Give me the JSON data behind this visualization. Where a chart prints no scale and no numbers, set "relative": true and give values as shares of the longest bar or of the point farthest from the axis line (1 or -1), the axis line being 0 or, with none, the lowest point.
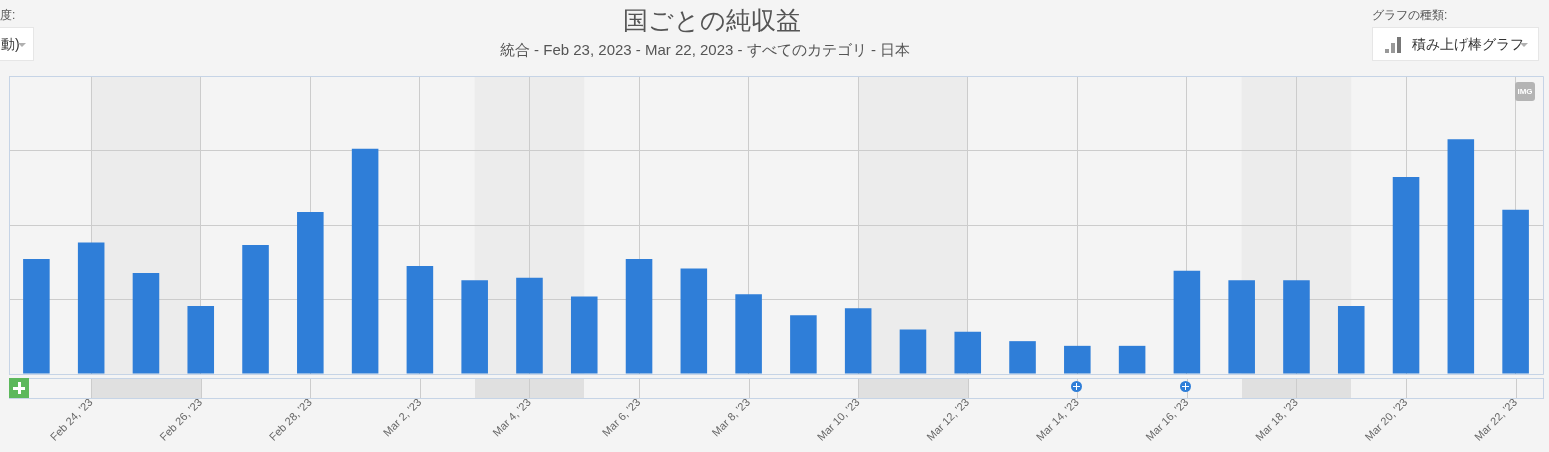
{
  "chart_data": {
    "type": "bar",
    "title": "国ごとの純収益",
    "subtitle": "統合 - Feb 23, 2023 - Mar 22, 2023 - すべてのカテゴリ - 日本",
    "x": [
      "2023-02-23",
      "2023-02-24",
      "2023-02-25",
      "2023-02-26",
      "2023-02-27",
      "2023-02-28",
      "2023-03-01",
      "2023-03-02",
      "2023-03-03",
      "2023-03-04",
      "2023-03-05",
      "2023-03-06",
      "2023-03-07",
      "2023-03-08",
      "2023-03-09",
      "2023-03-10",
      "2023-03-11",
      "2023-03-12",
      "2023-03-13",
      "2023-03-14",
      "2023-03-15",
      "2023-03-16",
      "2023-03-17",
      "2023-03-18",
      "2023-03-19",
      "2023-03-20",
      "2023-03-21",
      "2023-03-22"
    ],
    "values": [
      0.49,
      0.56,
      0.43,
      0.29,
      0.55,
      0.69,
      0.96,
      0.46,
      0.4,
      0.41,
      0.33,
      0.49,
      0.45,
      0.34,
      0.25,
      0.28,
      0.19,
      0.18,
      0.14,
      0.12,
      0.12,
      0.44,
      0.4,
      0.4,
      0.29,
      0.84,
      1,
      0.7
    ],
    "color": "#2f7ed8",
    "relative": true,
    "xlim": [
      "2023-02-22T12:00",
      "2023-03-22T12:00"
    ],
    "xticks": [
      {
        "value": "2023-02-24",
        "label": "Feb 24, '23"
      },
      {
        "value": "2023-02-26",
        "label": "Feb 26, '23"
      },
      {
        "value": "2023-02-28",
        "label": "Feb 28, '23"
      },
      {
        "value": "2023-03-02",
        "label": "Mar 2, '23"
      },
      {
        "value": "2023-03-04",
        "label": "Mar 4, '23"
      },
      {
        "value": "2023-03-06",
        "label": "Mar 6, '23"
      },
      {
        "value": "2023-03-08",
        "label": "Mar 8, '23"
      },
      {
        "value": "2023-03-10",
        "label": "Mar 10, '23"
      },
      {
        "value": "2023-03-12",
        "label": "Mar 12, '23"
      },
      {
        "value": "2023-03-14",
        "label": "Mar 14, '23"
      },
      {
        "value": "2023-03-16",
        "label": "Mar 16, '23"
      },
      {
        "value": "2023-03-18",
        "label": "Mar 18, '23"
      },
      {
        "value": "2023-03-20",
        "label": "Mar 20, '23"
      },
      {
        "value": "2023-03-22",
        "label": "Mar 22, '23"
      }
    ],
    "grid": true,
    "bands": [
      {
        "axis": "x",
        "from": "2023-02-24",
        "to": "2023-02-26",
        "color": "#ececec"
      },
      {
        "axis": "x",
        "from": "2023-03-03",
        "to": "2023-03-05",
        "color": "#ececec"
      },
      {
        "axis": "x",
        "from": "2023-03-10",
        "to": "2023-03-12",
        "color": "#ececec"
      },
      {
        "axis": "x",
        "from": "2023-03-17",
        "to": "2023-03-19",
        "color": "#ececec"
      }
    ],
    "annotations": [
      "度:",
      "動)",
      "グラフの種類:",
      "積み上げ棒グラフ",
      "IMG"
    ]
  }
}
